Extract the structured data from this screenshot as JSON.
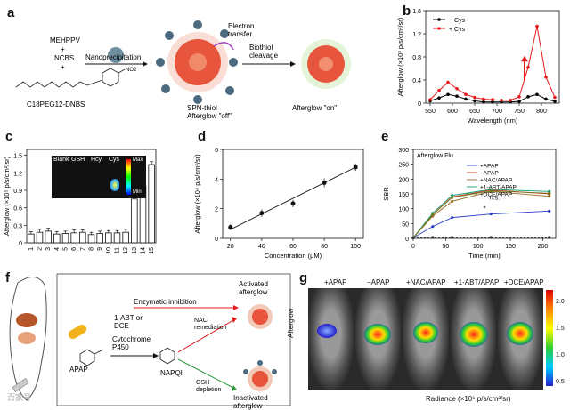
{
  "panels": {
    "a": {
      "label": "a",
      "reagents": [
        "MEHPPV",
        "+",
        "NCBS",
        "+"
      ],
      "nitro": "NO2",
      "probe_name": "C18PEG12-DNBS",
      "step1": "Nanoprecipitation",
      "electron_transfer": "Electron\ntransfer",
      "step2": "Biothiol\ncleavage",
      "state_off": "SPN-thiol\nAfterglow \"off\"",
      "state_on": "Afterglow \"on\""
    },
    "b": {
      "label": "b"
    },
    "c": {
      "label": "c",
      "inset_labels": [
        "Blank",
        "GSH",
        "Hcy",
        "Cys"
      ],
      "inset_max": "Max",
      "inset_min": "Min"
    },
    "d": {
      "label": "d"
    },
    "e": {
      "label": "e",
      "legend_title": "Afterglow Flu.",
      "annotation_ns": "n.s.",
      "annotation_star": "*"
    },
    "f": {
      "label": "f",
      "enzymatic": "Enzymatic inhibition",
      "inhibitor": "1-ABT or\nDCE",
      "enzyme": "Cytochrome\nP450",
      "apap": "APAP",
      "napqi": "NAPQI",
      "nac": "NAC\nremediation",
      "gsh": "GSH\ndepletion",
      "activated": "Activated\nafterglow",
      "inactivated": "Inactivated\nafterglow"
    },
    "g": {
      "label": "g",
      "conditions": [
        "+APAP",
        "−APAP",
        "+NAC/APAP",
        "+1-ABT/APAP",
        "+DCE/APAP"
      ],
      "ylabel": "Afterglow",
      "colorbar_ticks": [
        "2.0",
        "1.5",
        "1.0",
        "0.5"
      ],
      "colorbar_label": "Radiance (×10⁶ p/s/cm²/sr)"
    },
    "watermark": "百家号"
  },
  "chart_data": [
    {
      "id": "b",
      "type": "line",
      "xlabel": "Wavelength (nm)",
      "ylabel": "Afterglow (×10³ p/s/cm²/sr)",
      "xlim": [
        540,
        840
      ],
      "ylim": [
        0,
        1.6
      ],
      "xticks": [
        550,
        600,
        650,
        700,
        750,
        800
      ],
      "yticks": [
        0,
        0.4,
        0.8,
        1.2,
        1.6
      ],
      "ytick_labels": [
        "0",
        "0.4",
        "0.8",
        "1.2",
        "1.6"
      ],
      "series": [
        {
          "name": "− Cys",
          "color": "#000000",
          "x": [
            550,
            570,
            590,
            610,
            630,
            650,
            670,
            690,
            710,
            730,
            750,
            770,
            790,
            810,
            830
          ],
          "y": [
            0.04,
            0.09,
            0.15,
            0.12,
            0.07,
            0.04,
            0.02,
            0.02,
            0.02,
            0.02,
            0.03,
            0.11,
            0.15,
            0.07,
            0.03
          ]
        },
        {
          "name": "+ Cys",
          "color": "#e41a1c",
          "x": [
            550,
            570,
            590,
            610,
            630,
            650,
            670,
            690,
            710,
            730,
            750,
            770,
            790,
            810,
            830
          ],
          "y": [
            0.06,
            0.22,
            0.36,
            0.25,
            0.15,
            0.1,
            0.07,
            0.06,
            0.05,
            0.05,
            0.11,
            0.62,
            1.33,
            0.45,
            0.1
          ]
        }
      ]
    },
    {
      "id": "c",
      "type": "bar",
      "ylabel": "Afterglow (×10⁵ p/s/cm²/sr)",
      "categories": [
        "1",
        "2",
        "3",
        "4",
        "5",
        "6",
        "7",
        "8",
        "9",
        "10",
        "11",
        "12",
        "13",
        "14",
        "15"
      ],
      "values": [
        0.15,
        0.18,
        0.2,
        0.15,
        0.16,
        0.17,
        0.18,
        0.14,
        0.16,
        0.17,
        0.17,
        0.18,
        0.75,
        0.97,
        1.34
      ],
      "errors": [
        0.04,
        0.05,
        0.05,
        0.04,
        0.04,
        0.05,
        0.04,
        0.04,
        0.04,
        0.04,
        0.04,
        0.05,
        0.07,
        0.07,
        0.05
      ],
      "ylim": [
        0,
        1.6
      ],
      "yticks": [
        0,
        0.3,
        0.6,
        0.9,
        1.2,
        1.5
      ],
      "ytick_labels": [
        "0",
        "0.3",
        "0.6",
        "0.9",
        "1.2",
        "1.5"
      ]
    },
    {
      "id": "d",
      "type": "scatter",
      "xlabel": "Concentration (μM)",
      "ylabel": "Afterglow (×10⁴ p/s/cm²/sr)",
      "x": [
        20,
        40,
        60,
        80,
        100
      ],
      "y": [
        0.75,
        1.7,
        2.35,
        3.75,
        4.8
      ],
      "errors": [
        0.2,
        0.25,
        0.25,
        0.3,
        0.25
      ],
      "xlim": [
        15,
        105
      ],
      "ylim": [
        0,
        6
      ],
      "xticks": [
        20,
        40,
        60,
        80,
        100
      ],
      "yticks": [
        0,
        2,
        4,
        6
      ],
      "ytick_labels": [
        "0",
        "2",
        "4",
        "6"
      ]
    },
    {
      "id": "e",
      "type": "line",
      "xlabel": "Time (min)",
      "ylabel": "SBR",
      "x": [
        0,
        30,
        60,
        120,
        210
      ],
      "xlim": [
        0,
        220
      ],
      "ylim": [
        0,
        300
      ],
      "xticks": [
        0,
        50,
        100,
        150,
        200
      ],
      "yticks": [
        0,
        50,
        100,
        150,
        200,
        250,
        300
      ],
      "series": [
        {
          "name": "+APAP",
          "color": "#2c3fc2",
          "y": [
            2,
            40,
            70,
            82,
            92
          ]
        },
        {
          "name": "−APAP",
          "color": "#d9302a",
          "y": [
            2,
            80,
            140,
            163,
            150
          ]
        },
        {
          "name": "+NAC/APAP",
          "color": "#9a6a2a",
          "y": [
            2,
            75,
            125,
            158,
            142
          ]
        },
        {
          "name": "+1-ABT/APAP",
          "color": "#1a9a7a",
          "y": [
            2,
            85,
            145,
            165,
            158
          ]
        },
        {
          "name": "+DCE/APAP",
          "color": "#6a7a1a",
          "y": [
            2,
            80,
            138,
            160,
            152
          ]
        },
        {
          "name": "Afterglow",
          "color": "#333333",
          "y": [
            2,
            3,
            3,
            3,
            3
          ]
        }
      ]
    }
  ]
}
